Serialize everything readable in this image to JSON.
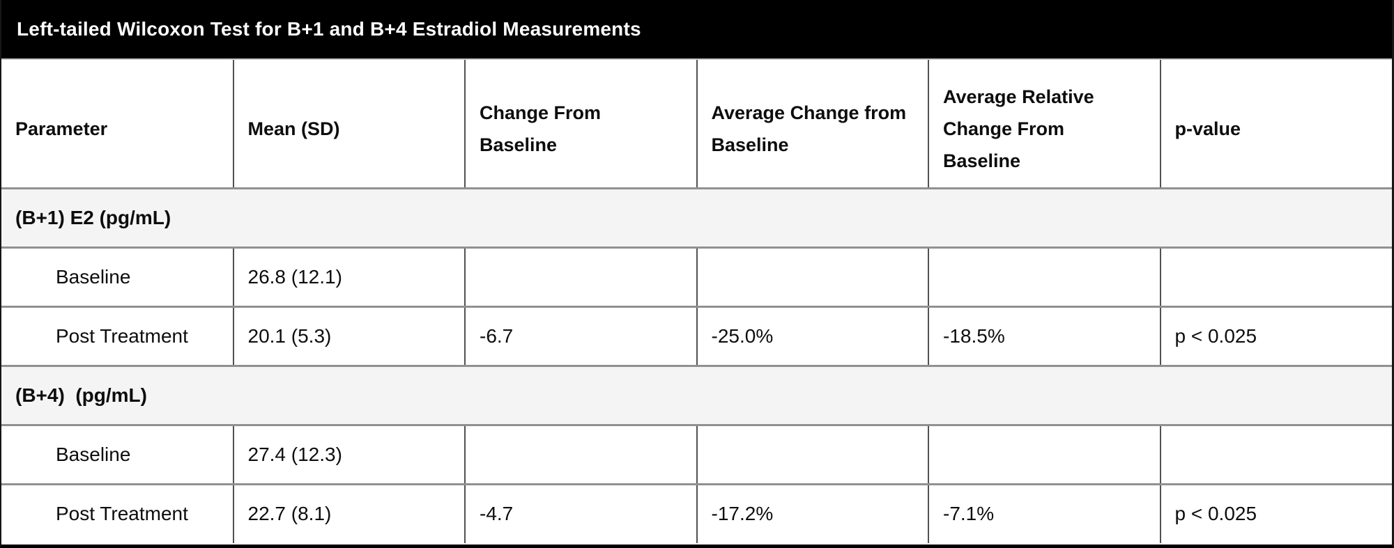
{
  "title": "Left-tailed Wilcoxon Test for B+1 and B+4 Estradiol Measurements",
  "colors": {
    "title_bar_bg": "#000000",
    "title_text": "#ffffff",
    "section_row_bg": "#f4f4f4",
    "row_border": "#909090",
    "column_border": "#515151",
    "outer_border": "#000000",
    "body_text": "#0d0d0d"
  },
  "table": {
    "columns": [
      {
        "label": "Parameter"
      },
      {
        "label": "Mean (SD)"
      },
      {
        "label": "Change From Baseline"
      },
      {
        "label": "Average Change from Baseline"
      },
      {
        "label": "Average Relative Change From Baseline"
      },
      {
        "label": "p-value"
      }
    ],
    "sections": [
      {
        "label": "(B+1) E2 (pg/mL)",
        "rows": [
          {
            "cells": [
              "Baseline",
              "26.8 (12.1)",
              "",
              "",
              "",
              ""
            ]
          },
          {
            "cells": [
              "Post Treatment",
              "20.1 (5.3)",
              "-6.7",
              "-25.0%",
              "-18.5%",
              "p < 0.025"
            ]
          }
        ]
      },
      {
        "label": "(B+4)  (pg/mL)",
        "rows": [
          {
            "cells": [
              "Baseline",
              "27.4 (12.3)",
              "",
              "",
              "",
              ""
            ]
          },
          {
            "cells": [
              "Post Treatment",
              "22.7 (8.1)",
              "-4.7",
              "-17.2%",
              "-7.1%",
              "p < 0.025"
            ]
          }
        ]
      }
    ]
  }
}
